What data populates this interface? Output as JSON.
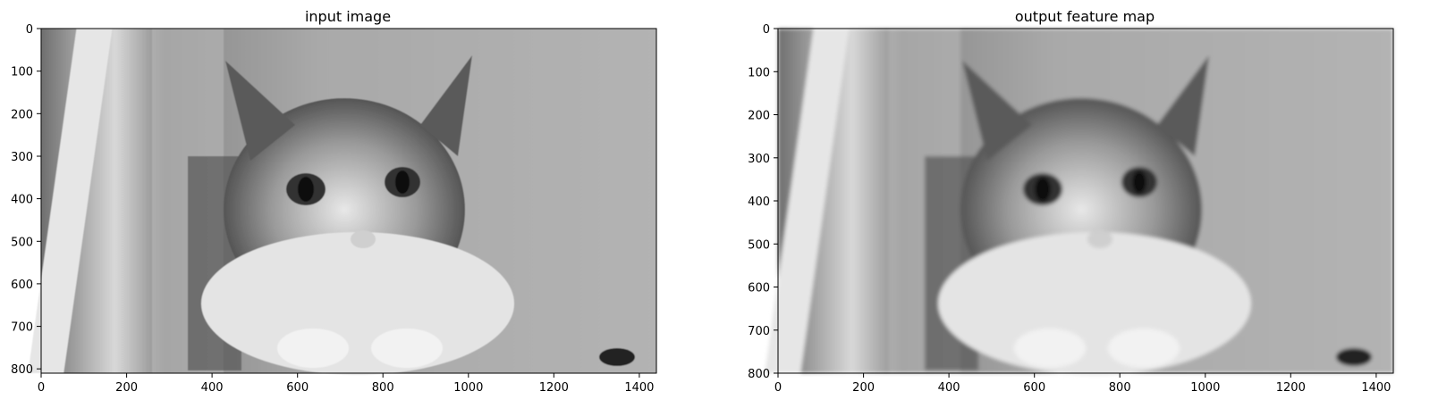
{
  "figure": {
    "left": {
      "title": "input image",
      "xticks": [
        "0",
        "200",
        "400",
        "600",
        "800",
        "1000",
        "1200",
        "1400"
      ],
      "yticks": [
        "0",
        "100",
        "200",
        "300",
        "400",
        "500",
        "600",
        "700",
        "800"
      ],
      "xlim": [
        0,
        1440
      ],
      "ylim": [
        810,
        0
      ]
    },
    "right": {
      "title": "output feature map",
      "xticks": [
        "0",
        "200",
        "400",
        "600",
        "800",
        "1000",
        "1200",
        "1400"
      ],
      "yticks": [
        "0",
        "100",
        "200",
        "300",
        "400",
        "500",
        "600",
        "700",
        "800"
      ],
      "xlim": [
        0,
        1440
      ],
      "ylim": [
        800,
        0
      ]
    }
  },
  "colors": {
    "background": "#ffffff",
    "axis": "#000000"
  }
}
